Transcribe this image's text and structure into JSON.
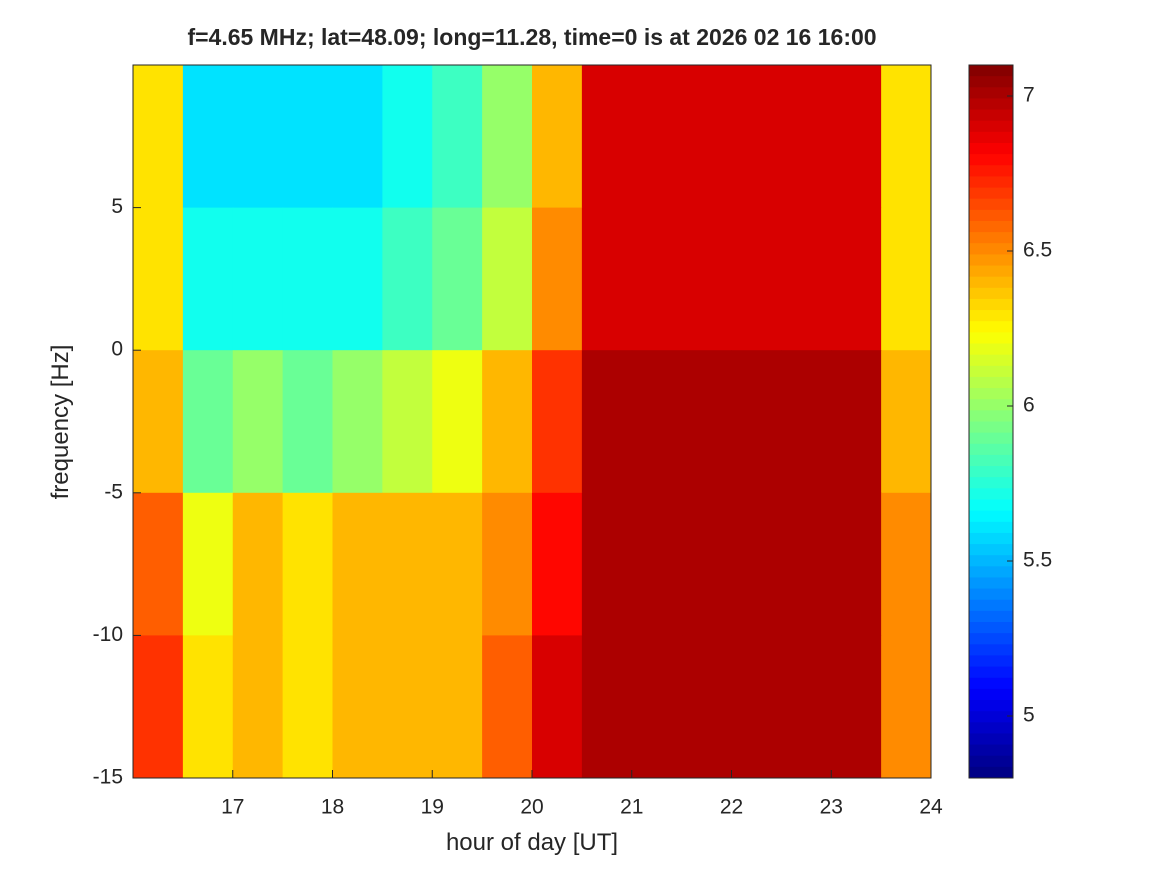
{
  "chart_data": {
    "type": "heatmap",
    "title": "f=4.65 MHz;  lat=48.09; long=11.28, time=0 is at 2026 02 16 16:00",
    "xlabel": "hour of day [UT]",
    "ylabel": "frequency [Hz]",
    "x": [
      16.25,
      16.75,
      17.25,
      17.75,
      18.25,
      18.75,
      19.25,
      19.75,
      20.25,
      20.75,
      21.25,
      21.75,
      22.25,
      22.75,
      23.25,
      23.75
    ],
    "y": [
      7.5,
      2.5,
      -2.5,
      -7.5,
      -12.5
    ],
    "z": [
      [
        6.3,
        5.6,
        5.6,
        5.6,
        5.6,
        5.7,
        5.8,
        6.0,
        6.4,
        6.9,
        6.9,
        6.9,
        6.9,
        6.9,
        6.9,
        6.3
      ],
      [
        6.3,
        5.7,
        5.7,
        5.7,
        5.7,
        5.8,
        5.9,
        6.1,
        6.5,
        6.9,
        6.9,
        6.9,
        6.9,
        6.9,
        6.9,
        6.3
      ],
      [
        6.4,
        5.9,
        6.0,
        5.9,
        6.0,
        6.1,
        6.2,
        6.4,
        6.7,
        7.0,
        7.0,
        7.0,
        7.0,
        7.0,
        7.0,
        6.4
      ],
      [
        6.6,
        6.2,
        6.4,
        6.3,
        6.4,
        6.4,
        6.4,
        6.5,
        6.8,
        7.0,
        7.0,
        7.0,
        7.0,
        7.0,
        7.0,
        6.5
      ],
      [
        6.7,
        6.3,
        6.4,
        6.3,
        6.4,
        6.4,
        6.4,
        6.6,
        6.9,
        7.0,
        7.0,
        7.0,
        7.0,
        7.0,
        7.0,
        6.5
      ]
    ],
    "xlim": [
      16,
      24
    ],
    "xticks": [
      17,
      18,
      19,
      20,
      21,
      22,
      23,
      24
    ],
    "ylim": [
      -15,
      10
    ],
    "yticks": [
      -15,
      -10,
      -5,
      0,
      5
    ],
    "colormap": "jet",
    "clim": [
      4.8,
      7.1
    ],
    "cticks": [
      5,
      5.5,
      6,
      6.5,
      7
    ]
  }
}
